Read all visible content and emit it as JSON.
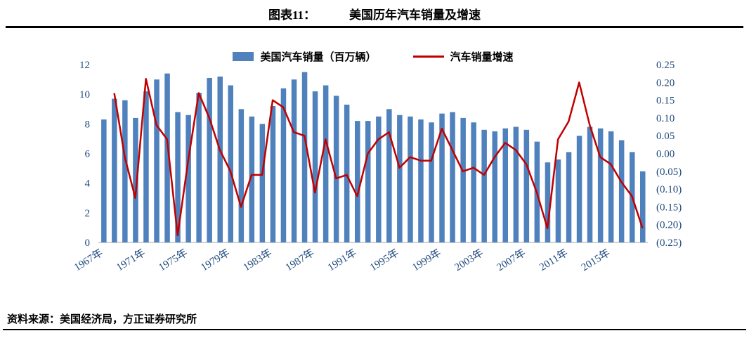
{
  "header": {
    "caption_label": "图表11：",
    "caption_title": "美国历年汽车销量及增速"
  },
  "footer": {
    "source": "资料来源：美国经济局，方正证券研究所"
  },
  "colors": {
    "bar": "#4F81BD",
    "line": "#C00000",
    "axis_text": "#1F497D",
    "baseline": "#A6A6A6",
    "rule": "#000000"
  },
  "chart_data": {
    "type": "bar",
    "combo": "bar+line",
    "title": "美国历年汽车销量及增速",
    "xlabel": "",
    "ylabel_left": "美国汽车销量（百万辆）",
    "ylabel_right": "汽车销量增速",
    "grid": false,
    "legend_position": "top-center",
    "categories": [
      1967,
      1968,
      1969,
      1970,
      1971,
      1972,
      1973,
      1974,
      1975,
      1976,
      1977,
      1978,
      1979,
      1980,
      1981,
      1982,
      1983,
      1984,
      1985,
      1986,
      1987,
      1988,
      1989,
      1990,
      1991,
      1992,
      1993,
      1994,
      1995,
      1996,
      1997,
      1998,
      1999,
      2000,
      2001,
      2002,
      2003,
      2004,
      2005,
      2006,
      2007,
      2008,
      2009,
      2010,
      2011,
      2012,
      2013,
      2014,
      2015,
      2016,
      2017,
      2018
    ],
    "series": [
      {
        "name": "美国汽车销量（百万辆）",
        "type": "bar",
        "axis": "left",
        "color": "#4F81BD",
        "values": [
          8.3,
          9.7,
          9.6,
          8.4,
          10.2,
          11.0,
          11.4,
          8.8,
          8.6,
          10.1,
          11.1,
          11.2,
          10.6,
          9.0,
          8.5,
          8.0,
          9.2,
          10.4,
          11.0,
          11.5,
          10.2,
          10.6,
          9.9,
          9.3,
          8.2,
          8.2,
          8.5,
          9.0,
          8.6,
          8.5,
          8.3,
          8.1,
          8.7,
          8.8,
          8.4,
          8.1,
          7.6,
          7.5,
          7.7,
          7.8,
          7.6,
          6.8,
          5.4,
          5.6,
          6.1,
          7.2,
          7.8,
          7.7,
          7.5,
          6.9,
          6.1,
          4.8
        ]
      },
      {
        "name": "汽车销量增速",
        "type": "line",
        "axis": "right",
        "color": "#C00000",
        "values": [
          null,
          0.17,
          -0.01,
          -0.125,
          0.21,
          0.08,
          0.04,
          -0.23,
          -0.02,
          0.17,
          0.1,
          0.01,
          -0.05,
          -0.15,
          -0.06,
          -0.06,
          0.15,
          0.13,
          0.06,
          0.05,
          -0.11,
          0.04,
          -0.07,
          -0.06,
          -0.12,
          0.0,
          0.04,
          0.06,
          -0.04,
          -0.01,
          -0.02,
          -0.02,
          0.07,
          0.01,
          -0.05,
          -0.04,
          -0.06,
          -0.01,
          0.03,
          0.01,
          -0.03,
          -0.11,
          -0.21,
          0.04,
          0.09,
          0.2,
          0.08,
          -0.01,
          -0.03,
          -0.08,
          -0.12,
          -0.21
        ]
      }
    ],
    "left_axis": {
      "min": 0,
      "max": 12,
      "ticks": [
        "0",
        "2",
        "4",
        "6",
        "8",
        "10",
        "12"
      ]
    },
    "right_axis": {
      "min": -0.25,
      "max": 0.25,
      "ticks_top_to_bottom": [
        "0.25",
        "0.20",
        "0.15",
        "0.10",
        "0.05",
        "0.00",
        "(0.05)",
        "(0.10)",
        "(0.15)",
        "(0.20)",
        "(0.25)"
      ]
    },
    "x_tick_every": 4,
    "x_tick_labels": [
      "1967年",
      "1971年",
      "1975年",
      "1979年",
      "1983年",
      "1987年",
      "1991年",
      "1995年",
      "1999年",
      "2003年",
      "2007年",
      "2011年",
      "2015年"
    ]
  }
}
